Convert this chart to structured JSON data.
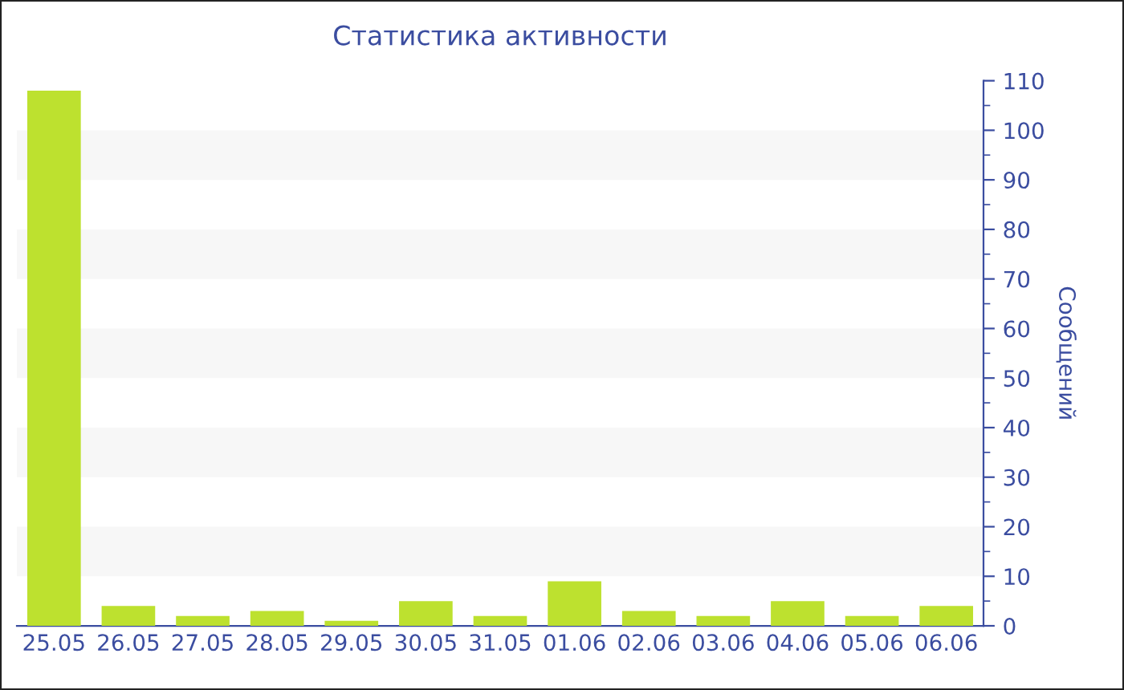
{
  "chart_data": {
    "type": "bar",
    "title": "Статистика активности",
    "ylabel": "Сообщений",
    "categories": [
      "25.05",
      "26.05",
      "27.05",
      "28.05",
      "29.05",
      "30.05",
      "31.05",
      "01.06",
      "02.06",
      "03.06",
      "04.06",
      "05.06",
      "06.06"
    ],
    "values": [
      108,
      4,
      2,
      3,
      1,
      5,
      2,
      9,
      3,
      2,
      5,
      2,
      4
    ],
    "color": "#bde12f",
    "ylim": [
      0,
      110
    ],
    "yticks": [
      0,
      10,
      20,
      30,
      40,
      50,
      60,
      70,
      80,
      90,
      100,
      110
    ],
    "bands": [
      {
        "axis": "y",
        "from": 10,
        "to": 20,
        "color": "#f7f7f7"
      },
      {
        "axis": "y",
        "from": 30,
        "to": 40,
        "color": "#f7f7f7"
      },
      {
        "axis": "y",
        "from": 50,
        "to": 60,
        "color": "#f7f7f7"
      },
      {
        "axis": "y",
        "from": 70,
        "to": 80,
        "color": "#f7f7f7"
      },
      {
        "axis": "y",
        "from": 90,
        "to": 100,
        "color": "#f7f7f7"
      }
    ],
    "legend": false
  }
}
